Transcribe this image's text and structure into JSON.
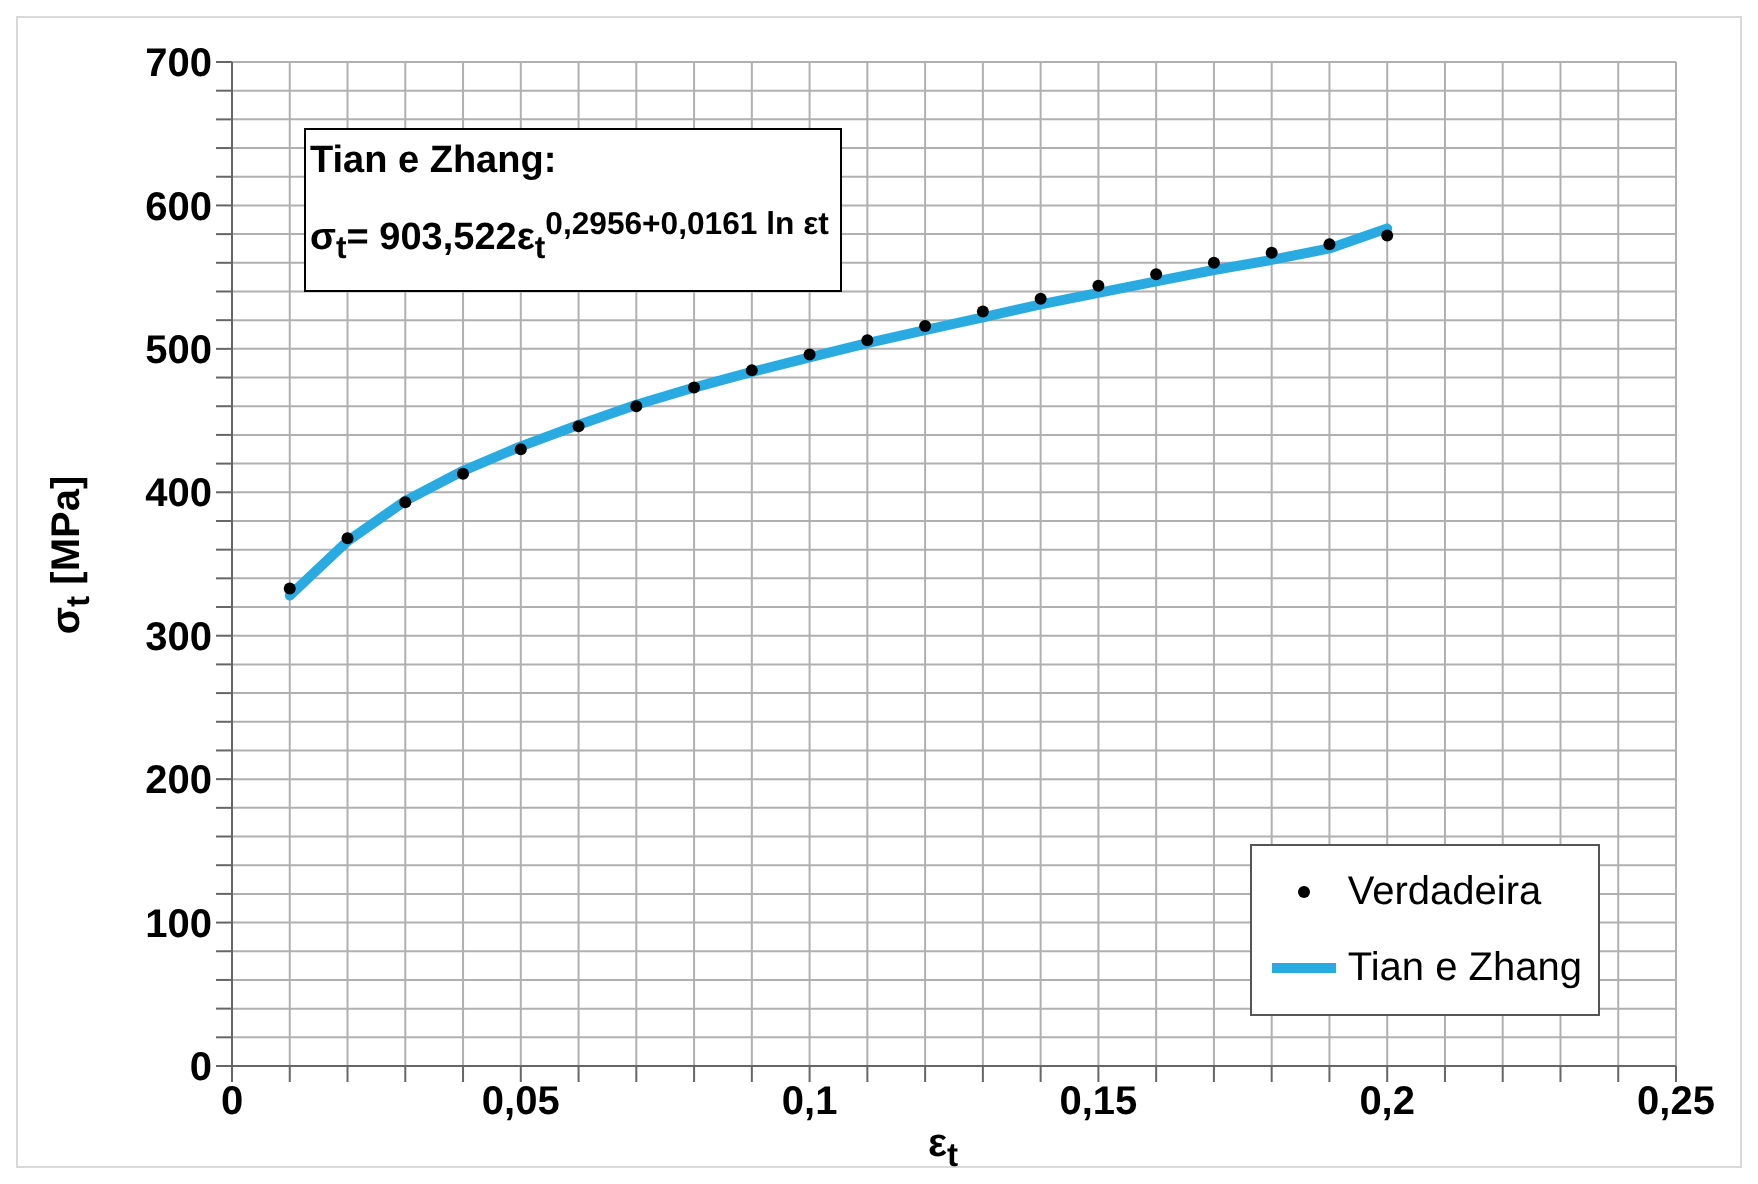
{
  "chart_data": {
    "type": "line",
    "annotations": [
      "Tian e Zhang:",
      "σ$_{t}$= 903,522ε$_{t}$$^{0,2956+0,0161 ln εt}$"
    ],
    "xlabel": "ε$_{t}$",
    "ylabel": "σ$_{t}$ [MPa]",
    "xlim": [
      0,
      0.25
    ],
    "xticks": [
      0,
      {
        "value": 0.01,
        "label": null
      },
      {
        "value": 0.02,
        "label": null
      },
      {
        "value": 0.03,
        "label": null
      },
      {
        "value": 0.04,
        "label": null
      },
      {
        "value": 0.05,
        "label": "0,05"
      },
      {
        "value": 0.06,
        "label": null
      },
      {
        "value": 0.07,
        "label": null
      },
      {
        "value": 0.08,
        "label": null
      },
      {
        "value": 0.09,
        "label": null
      },
      {
        "value": 0.1,
        "label": "0,1"
      },
      {
        "value": 0.11,
        "label": null
      },
      {
        "value": 0.12,
        "label": null
      },
      {
        "value": 0.13,
        "label": null
      },
      {
        "value": 0.14,
        "label": null
      },
      {
        "value": 0.15,
        "label": "0,15"
      },
      {
        "value": 0.16,
        "label": null
      },
      {
        "value": 0.17,
        "label": null
      },
      {
        "value": 0.18,
        "label": null
      },
      {
        "value": 0.19,
        "label": null
      },
      {
        "value": 0.2,
        "label": "0,2"
      },
      {
        "value": 0.21,
        "label": null
      },
      {
        "value": 0.22,
        "label": null
      },
      {
        "value": 0.23,
        "label": null
      },
      {
        "value": 0.24,
        "label": null
      },
      {
        "value": 0.25,
        "label": "0,25"
      }
    ],
    "ylim": [
      0,
      700
    ],
    "yticks": [
      0,
      {
        "value": 20,
        "label": null
      },
      {
        "value": 40,
        "label": null
      },
      {
        "value": 60,
        "label": null
      },
      {
        "value": 80,
        "label": null
      },
      100,
      {
        "value": 120,
        "label": null
      },
      {
        "value": 140,
        "label": null
      },
      {
        "value": 160,
        "label": null
      },
      {
        "value": 180,
        "label": null
      },
      200,
      {
        "value": 220,
        "label": null
      },
      {
        "value": 240,
        "label": null
      },
      {
        "value": 260,
        "label": null
      },
      {
        "value": 280,
        "label": null
      },
      300,
      {
        "value": 320,
        "label": null
      },
      {
        "value": 340,
        "label": null
      },
      {
        "value": 360,
        "label": null
      },
      {
        "value": 380,
        "label": null
      },
      400,
      {
        "value": 420,
        "label": null
      },
      {
        "value": 440,
        "label": null
      },
      {
        "value": 460,
        "label": null
      },
      {
        "value": 480,
        "label": null
      },
      500,
      {
        "value": 520,
        "label": null
      },
      {
        "value": 540,
        "label": null
      },
      {
        "value": 560,
        "label": null
      },
      {
        "value": 580,
        "label": null
      },
      600,
      {
        "value": 620,
        "label": null
      },
      {
        "value": 640,
        "label": null
      },
      {
        "value": 660,
        "label": null
      },
      {
        "value": 680,
        "label": null
      },
      700
    ],
    "grid": true,
    "legend": "bottom right",
    "x": [
      0.01,
      0.02,
      0.03,
      0.04,
      0.05,
      0.06,
      0.07,
      0.08,
      0.09,
      0.1,
      0.11,
      0.12,
      0.13,
      0.14,
      0.15,
      0.16,
      0.17,
      0.18,
      0.19,
      0.2
    ],
    "series": [
      {
        "name": "Verdadeira",
        "type": "scatter",
        "marker": "circle",
        "color": "#000000",
        "values": [
          333,
          368,
          393,
          413,
          430,
          446,
          460,
          473,
          485,
          496,
          506,
          516,
          526,
          535,
          544,
          552,
          560,
          567,
          573,
          579
        ]
      },
      {
        "name": "Tian e Zhang",
        "marker": "none",
        "color": "#29abe2",
        "values": [
          328,
          366,
          394,
          415,
          432,
          447,
          461,
          473,
          484,
          494,
          504,
          513,
          522,
          531,
          539,
          547,
          555,
          562,
          570,
          584
        ]
      }
    ]
  }
}
